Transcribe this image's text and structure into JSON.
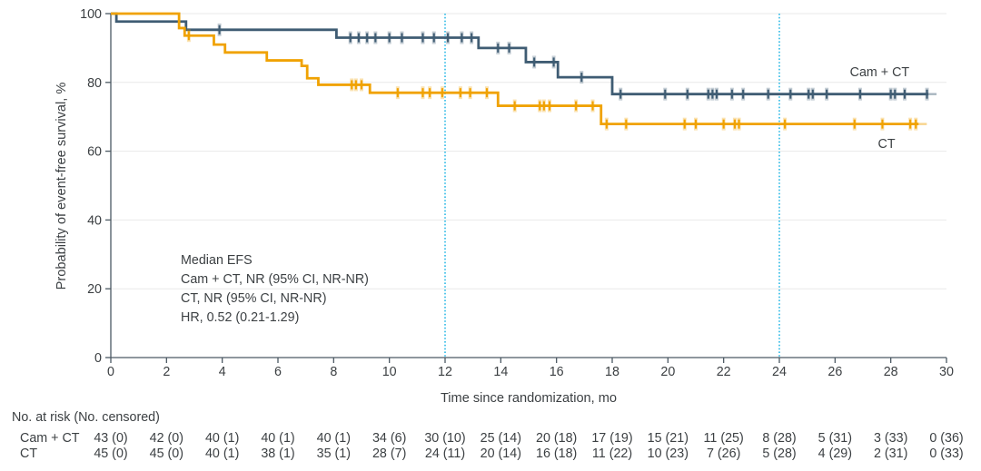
{
  "chart_data": {
    "type": "line",
    "variant": "kaplan-meier-step",
    "title": "",
    "xlabel": "Time since randomization, mo",
    "ylabel": "Probability of event-free survival, %",
    "xlim": [
      0,
      30
    ],
    "ylim": [
      0,
      100
    ],
    "x_ticks": [
      0,
      2,
      4,
      6,
      8,
      10,
      12,
      14,
      16,
      18,
      20,
      22,
      24,
      26,
      28,
      30
    ],
    "y_ticks": [
      0,
      20,
      40,
      60,
      80,
      100
    ],
    "grid": "horizontal-on",
    "gridline_color": "#E9E9E9",
    "axis_color": "#4C5963",
    "text_color": "#3C4043",
    "reference_lines_x": [
      12,
      24
    ],
    "reference_line_color": "#41C0E8",
    "legend_position": "curve-end-labels",
    "series": [
      {
        "name": "Cam + CT",
        "color": "#3F5C73",
        "steps": [
          [
            0,
            100
          ],
          [
            0.2,
            97.7
          ],
          [
            2.7,
            95.3
          ],
          [
            8.1,
            93.0
          ],
          [
            13.2,
            90.0
          ],
          [
            14.9,
            85.9
          ],
          [
            16.05,
            81.5
          ],
          [
            18.0,
            76.6
          ]
        ],
        "end_x": 29.35,
        "censors": [
          [
            3.9,
            95.3
          ],
          [
            8.6,
            93
          ],
          [
            8.9,
            93
          ],
          [
            9.2,
            93
          ],
          [
            9.5,
            93
          ],
          [
            10.0,
            93
          ],
          [
            10.45,
            93
          ],
          [
            11.2,
            93
          ],
          [
            11.6,
            93
          ],
          [
            12.1,
            93
          ],
          [
            12.6,
            93
          ],
          [
            12.95,
            93
          ],
          [
            13.9,
            90
          ],
          [
            14.3,
            90
          ],
          [
            15.2,
            85.9
          ],
          [
            15.9,
            85.9
          ],
          [
            16.9,
            81.5
          ],
          [
            18.3,
            76.6
          ],
          [
            19.9,
            76.6
          ],
          [
            20.7,
            76.6
          ],
          [
            21.45,
            76.6
          ],
          [
            21.6,
            76.6
          ],
          [
            21.75,
            76.6
          ],
          [
            22.3,
            76.6
          ],
          [
            22.7,
            76.6
          ],
          [
            23.6,
            76.6
          ],
          [
            24.4,
            76.6
          ],
          [
            25.05,
            76.6
          ],
          [
            25.2,
            76.6
          ],
          [
            25.7,
            76.6
          ],
          [
            26.9,
            76.6
          ],
          [
            28.0,
            76.6
          ],
          [
            28.15,
            76.6
          ],
          [
            28.5,
            76.6
          ],
          [
            29.3,
            76.6
          ]
        ],
        "label_pos": [
          27.6,
          81.8
        ]
      },
      {
        "name": "CT",
        "color": "#F0A202",
        "steps": [
          [
            0,
            100
          ],
          [
            2.45,
            95.8
          ],
          [
            2.65,
            93.6
          ],
          [
            3.7,
            91.0
          ],
          [
            4.1,
            88.7
          ],
          [
            5.6,
            86.4
          ],
          [
            6.85,
            84.8
          ],
          [
            7.05,
            81.2
          ],
          [
            7.45,
            79.3
          ],
          [
            9.3,
            77.0
          ],
          [
            13.9,
            73.2
          ],
          [
            17.6,
            67.9
          ]
        ],
        "end_x": 29.0,
        "censors": [
          [
            2.8,
            93.6
          ],
          [
            8.65,
            79.3
          ],
          [
            8.8,
            79.3
          ],
          [
            9.0,
            79.3
          ],
          [
            10.3,
            77
          ],
          [
            11.2,
            77
          ],
          [
            11.45,
            77
          ],
          [
            11.9,
            77
          ],
          [
            12.55,
            77
          ],
          [
            12.9,
            77
          ],
          [
            13.5,
            77
          ],
          [
            14.5,
            73.2
          ],
          [
            15.4,
            73.2
          ],
          [
            15.55,
            73.2
          ],
          [
            15.75,
            73.2
          ],
          [
            16.7,
            73.2
          ],
          [
            17.3,
            73.2
          ],
          [
            17.8,
            67.9
          ],
          [
            18.5,
            67.9
          ],
          [
            20.6,
            67.9
          ],
          [
            21.0,
            67.9
          ],
          [
            22.0,
            67.9
          ],
          [
            22.4,
            67.9
          ],
          [
            22.55,
            67.9
          ],
          [
            24.2,
            67.9
          ],
          [
            26.7,
            67.9
          ],
          [
            27.7,
            67.9
          ],
          [
            28.7,
            67.9
          ],
          [
            28.9,
            67.9
          ]
        ],
        "label_pos": [
          27.85,
          61.0
        ]
      }
    ],
    "annotation": {
      "lines": [
        "Median EFS",
        "Cam + CT, NR (95% CI, NR-NR)",
        "CT, NR (95% CI, NR-NR)",
        "HR, 0.52 (0.21-1.29)"
      ],
      "x": 2.5,
      "y": 30
    }
  },
  "risk_table": {
    "header": "No. at risk (No. censored)",
    "times": [
      0,
      2,
      4,
      6,
      8,
      10,
      12,
      14,
      16,
      18,
      20,
      22,
      24,
      26,
      28,
      30
    ],
    "rows": [
      {
        "label": "Cam + CT",
        "values": [
          "43 (0)",
          "42 (0)",
          "40 (1)",
          "40 (1)",
          "40 (1)",
          "34 (6)",
          "30 (10)",
          "25 (14)",
          "20 (18)",
          "17 (19)",
          "15 (21)",
          "11 (25)",
          "8 (28)",
          "5 (31)",
          "3 (33)",
          "0 (36)"
        ]
      },
      {
        "label": "CT",
        "values": [
          "45 (0)",
          "45 (0)",
          "40 (1)",
          "38 (1)",
          "35 (1)",
          "28 (7)",
          "24 (11)",
          "20 (14)",
          "16 (18)",
          "11 (22)",
          "10 (23)",
          "7 (26)",
          "5 (28)",
          "4 (29)",
          "2 (31)",
          "0 (33)"
        ]
      }
    ]
  }
}
